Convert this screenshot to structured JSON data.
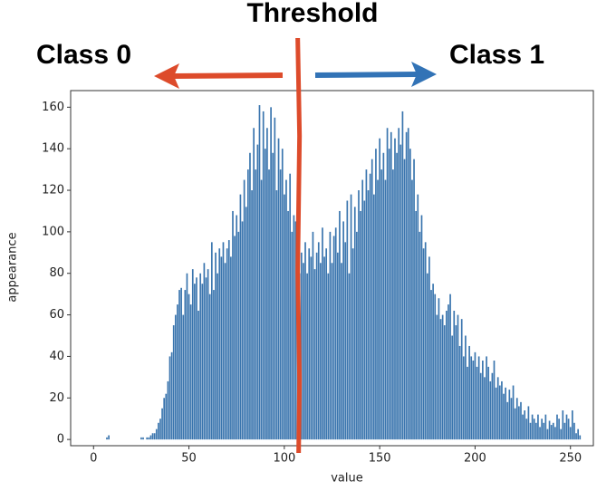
{
  "chart_data": {
    "type": "bar",
    "annotations": {
      "threshold": "Threshold",
      "left": "Class 0",
      "right": "Class 1"
    },
    "threshold": 107.5,
    "xlabel": "value",
    "ylabel": "appearance",
    "color": "#3a75ae",
    "x": [
      0,
      1,
      2,
      3,
      4,
      5,
      6,
      7,
      8,
      9,
      10,
      11,
      12,
      13,
      14,
      15,
      16,
      17,
      18,
      19,
      20,
      21,
      22,
      23,
      24,
      25,
      26,
      27,
      28,
      29,
      30,
      31,
      32,
      33,
      34,
      35,
      36,
      37,
      38,
      39,
      40,
      41,
      42,
      43,
      44,
      45,
      46,
      47,
      48,
      49,
      50,
      51,
      52,
      53,
      54,
      55,
      56,
      57,
      58,
      59,
      60,
      61,
      62,
      63,
      64,
      65,
      66,
      67,
      68,
      69,
      70,
      71,
      72,
      73,
      74,
      75,
      76,
      77,
      78,
      79,
      80,
      81,
      82,
      83,
      84,
      85,
      86,
      87,
      88,
      89,
      90,
      91,
      92,
      93,
      94,
      95,
      96,
      97,
      98,
      99,
      100,
      101,
      102,
      103,
      104,
      105,
      106,
      107,
      108,
      109,
      110,
      111,
      112,
      113,
      114,
      115,
      116,
      117,
      118,
      119,
      120,
      121,
      122,
      123,
      124,
      125,
      126,
      127,
      128,
      129,
      130,
      131,
      132,
      133,
      134,
      135,
      136,
      137,
      138,
      139,
      140,
      141,
      142,
      143,
      144,
      145,
      146,
      147,
      148,
      149,
      150,
      151,
      152,
      153,
      154,
      155,
      156,
      157,
      158,
      159,
      160,
      161,
      162,
      163,
      164,
      165,
      166,
      167,
      168,
      169,
      170,
      171,
      172,
      173,
      174,
      175,
      176,
      177,
      178,
      179,
      180,
      181,
      182,
      183,
      184,
      185,
      186,
      187,
      188,
      189,
      190,
      191,
      192,
      193,
      194,
      195,
      196,
      197,
      198,
      199,
      200,
      201,
      202,
      203,
      204,
      205,
      206,
      207,
      208,
      209,
      210,
      211,
      212,
      213,
      214,
      215,
      216,
      217,
      218,
      219,
      220,
      221,
      222,
      223,
      224,
      225,
      226,
      227,
      228,
      229,
      230,
      231,
      232,
      233,
      234,
      235,
      236,
      237,
      238,
      239,
      240,
      241,
      242,
      243,
      244,
      245,
      246,
      247,
      248,
      249,
      250,
      251,
      252,
      253,
      254,
      255
    ],
    "values": [
      0,
      0,
      0,
      0,
      0,
      0,
      0,
      1,
      2,
      0,
      0,
      0,
      0,
      0,
      0,
      0,
      0,
      0,
      0,
      0,
      0,
      0,
      0,
      0,
      0,
      1,
      1,
      0,
      1,
      1,
      2,
      3,
      3,
      5,
      8,
      10,
      15,
      20,
      22,
      28,
      40,
      42,
      55,
      60,
      65,
      72,
      73,
      60,
      72,
      80,
      70,
      65,
      82,
      75,
      78,
      62,
      80,
      75,
      85,
      78,
      82,
      70,
      95,
      72,
      90,
      80,
      92,
      88,
      95,
      85,
      92,
      96,
      88,
      110,
      98,
      108,
      100,
      118,
      105,
      125,
      112,
      130,
      138,
      120,
      150,
      130,
      142,
      161,
      125,
      158,
      140,
      150,
      130,
      160,
      138,
      155,
      120,
      145,
      130,
      140,
      118,
      125,
      110,
      128,
      100,
      108,
      105,
      95,
      80,
      90,
      85,
      95,
      80,
      92,
      88,
      100,
      82,
      90,
      95,
      85,
      102,
      88,
      92,
      80,
      100,
      85,
      98,
      102,
      90,
      110,
      85,
      105,
      95,
      115,
      80,
      118,
      92,
      112,
      100,
      120,
      110,
      125,
      115,
      130,
      120,
      128,
      135,
      118,
      140,
      125,
      145,
      130,
      138,
      125,
      150,
      140,
      148,
      130,
      145,
      138,
      150,
      142,
      158,
      135,
      148,
      150,
      140,
      125,
      135,
      110,
      118,
      100,
      108,
      92,
      95,
      80,
      88,
      72,
      75,
      70,
      60,
      68,
      58,
      60,
      55,
      62,
      65,
      70,
      50,
      62,
      55,
      60,
      45,
      58,
      40,
      50,
      35,
      45,
      40,
      38,
      42,
      35,
      40,
      32,
      38,
      30,
      40,
      35,
      28,
      32,
      38,
      25,
      30,
      26,
      28,
      22,
      25,
      18,
      24,
      20,
      26,
      15,
      20,
      16,
      18,
      12,
      14,
      10,
      16,
      8,
      12,
      10,
      8,
      12,
      6,
      10,
      8,
      12,
      5,
      9,
      7,
      8,
      6,
      12,
      10,
      5,
      14,
      8,
      12,
      10,
      6,
      14,
      8,
      3,
      5,
      2
    ],
    "xlim": [
      -12,
      262
    ],
    "ylim": [
      -3,
      168
    ],
    "xticks": [
      0,
      50,
      100,
      150,
      200,
      250
    ],
    "yticks": [
      0,
      20,
      40,
      60,
      80,
      100,
      120,
      140,
      160
    ]
  }
}
